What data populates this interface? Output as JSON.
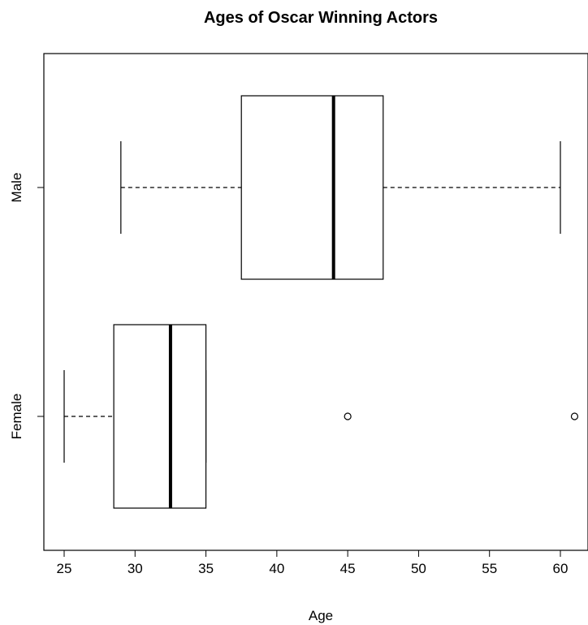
{
  "chart_data": {
    "type": "boxplot",
    "orientation": "horizontal",
    "title": "Ages of Oscar Winning Actors",
    "xlabel": "Age",
    "ylabel": "",
    "xlim": [
      23.5,
      61.5
    ],
    "xticks": [
      25,
      30,
      35,
      40,
      45,
      50,
      55,
      60
    ],
    "xtick_labels": [
      "25",
      "30",
      "35",
      "40",
      "45",
      "50",
      "55",
      "60"
    ],
    "categories": [
      "Female",
      "Male"
    ],
    "series": [
      {
        "category": "Female",
        "whisker_low": 25,
        "q1": 28.5,
        "median": 32.5,
        "q3": 35,
        "whisker_high": 35,
        "outliers": [
          45,
          61
        ]
      },
      {
        "category": "Male",
        "whisker_low": 29,
        "q1": 37.5,
        "median": 44,
        "q3": 47.5,
        "whisker_high": 60,
        "outliers": []
      }
    ],
    "grid": false,
    "legend": "none",
    "colors": {
      "stroke": "#000000",
      "fill": "#ffffff"
    }
  }
}
